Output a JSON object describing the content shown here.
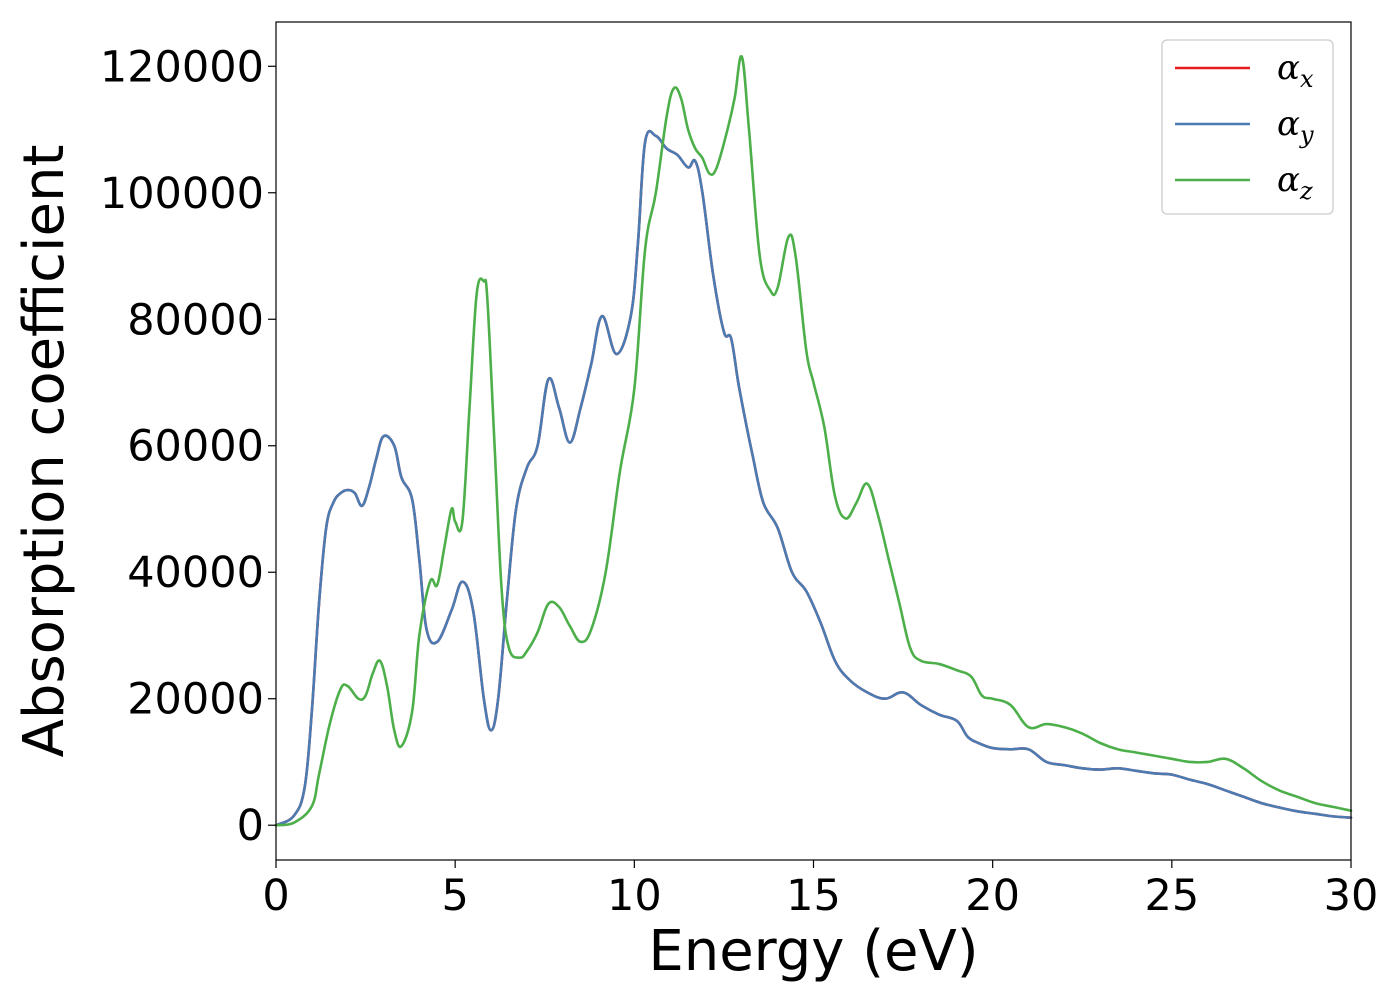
{
  "chart_data": {
    "type": "line",
    "title": "",
    "xlabel": "Energy (eV)",
    "ylabel": "Absorption coefficient",
    "xlim": [
      0,
      30
    ],
    "ylim": [
      -5500,
      127000
    ],
    "xticks": [
      0,
      5,
      10,
      15,
      20,
      25,
      30
    ],
    "yticks": [
      0,
      20000,
      40000,
      60000,
      80000,
      100000,
      120000
    ],
    "xtick_labels": [
      "0",
      "5",
      "10",
      "15",
      "20",
      "25",
      "30"
    ],
    "ytick_labels": [
      "0",
      "20000",
      "40000",
      "60000",
      "80000",
      "100000",
      "120000"
    ],
    "grid": false,
    "legend_position": "top-right",
    "series": [
      {
        "name": "α_x",
        "legend_symbol": "α",
        "legend_subscript": "x",
        "color": "#e41a1c",
        "x": [
          0,
          0.5,
          0.8,
          1.0,
          1.2,
          1.4,
          1.6,
          1.8,
          2.0,
          2.2,
          2.4,
          2.6,
          2.8,
          3.0,
          3.3,
          3.5,
          3.8,
          4.0,
          4.2,
          4.5,
          4.9,
          5.2,
          5.5,
          5.8,
          6.0,
          6.2,
          6.45,
          6.7,
          7.0,
          7.3,
          7.6,
          7.9,
          8.2,
          8.5,
          8.8,
          9.1,
          9.5,
          9.9,
          10.1,
          10.3,
          10.6,
          10.9,
          11.2,
          11.5,
          11.7,
          11.9,
          12.2,
          12.5,
          12.7,
          12.9,
          13.1,
          13.3,
          13.6,
          14.0,
          14.4,
          14.8,
          15.2,
          15.6,
          16.0,
          16.5,
          17.0,
          17.5,
          18.0,
          18.5,
          19.0,
          19.3,
          19.6,
          20.0,
          20.5,
          21.0,
          21.5,
          22.0,
          22.5,
          23.0,
          23.5,
          24.0,
          24.5,
          25.0,
          25.5,
          26.0,
          26.5,
          27.0,
          27.5,
          28.0,
          28.5,
          29.0,
          29.5,
          30.0
        ],
        "y": [
          0,
          1500,
          6000,
          18000,
          35000,
          47000,
          51000,
          52500,
          53000,
          52500,
          50500,
          53500,
          58000,
          61500,
          60000,
          55000,
          51500,
          42000,
          31000,
          29000,
          34000,
          38500,
          34000,
          20000,
          15000,
          20000,
          36000,
          50000,
          56500,
          60000,
          70500,
          66000,
          60500,
          66000,
          73000,
          80500,
          74500,
          80500,
          92000,
          108000,
          109000,
          107000,
          106000,
          104000,
          105000,
          100000,
          87000,
          78000,
          77000,
          70000,
          64000,
          58500,
          51000,
          47000,
          40000,
          37000,
          32000,
          26000,
          23000,
          21000,
          20000,
          21000,
          19000,
          17500,
          16500,
          14000,
          13000,
          12200,
          12000,
          12000,
          10000,
          9500,
          9000,
          8800,
          9000,
          8600,
          8200,
          8000,
          7200,
          6500,
          5500,
          4500,
          3500,
          2800,
          2200,
          1800,
          1400,
          1200
        ]
      },
      {
        "name": "α_y",
        "legend_symbol": "α",
        "legend_subscript": "y",
        "color": "#4a7cb3",
        "x": [
          0,
          0.5,
          0.8,
          1.0,
          1.2,
          1.4,
          1.6,
          1.8,
          2.0,
          2.2,
          2.4,
          2.6,
          2.8,
          3.0,
          3.3,
          3.5,
          3.8,
          4.0,
          4.2,
          4.5,
          4.9,
          5.2,
          5.5,
          5.8,
          6.0,
          6.2,
          6.45,
          6.7,
          7.0,
          7.3,
          7.6,
          7.9,
          8.2,
          8.5,
          8.8,
          9.1,
          9.5,
          9.9,
          10.1,
          10.3,
          10.6,
          10.9,
          11.2,
          11.5,
          11.7,
          11.9,
          12.2,
          12.5,
          12.7,
          12.9,
          13.1,
          13.3,
          13.6,
          14.0,
          14.4,
          14.8,
          15.2,
          15.6,
          16.0,
          16.5,
          17.0,
          17.5,
          18.0,
          18.5,
          19.0,
          19.3,
          19.6,
          20.0,
          20.5,
          21.0,
          21.5,
          22.0,
          22.5,
          23.0,
          23.5,
          24.0,
          24.5,
          25.0,
          25.5,
          26.0,
          26.5,
          27.0,
          27.5,
          28.0,
          28.5,
          29.0,
          29.5,
          30.0
        ],
        "y": [
          0,
          1500,
          6000,
          18000,
          35000,
          47000,
          51000,
          52500,
          53000,
          52500,
          50500,
          53500,
          58000,
          61500,
          60000,
          55000,
          51500,
          42000,
          31000,
          29000,
          34000,
          38500,
          34000,
          20000,
          15000,
          20000,
          36000,
          50000,
          56500,
          60000,
          70500,
          66000,
          60500,
          66000,
          73000,
          80500,
          74500,
          80500,
          92000,
          108000,
          109000,
          107000,
          106000,
          104000,
          105000,
          100000,
          87000,
          78000,
          77000,
          70000,
          64000,
          58500,
          51000,
          47000,
          40000,
          37000,
          32000,
          26000,
          23000,
          21000,
          20000,
          21000,
          19000,
          17500,
          16500,
          14000,
          13000,
          12200,
          12000,
          12000,
          10000,
          9500,
          9000,
          8800,
          9000,
          8600,
          8200,
          8000,
          7200,
          6500,
          5500,
          4500,
          3500,
          2800,
          2200,
          1800,
          1400,
          1200
        ]
      },
      {
        "name": "α_z",
        "legend_symbol": "α",
        "legend_subscript": "z",
        "color": "#4daf4a",
        "x": [
          0,
          0.5,
          1.0,
          1.2,
          1.5,
          1.8,
          2.0,
          2.3,
          2.5,
          2.7,
          2.9,
          3.1,
          3.3,
          3.5,
          3.8,
          4.0,
          4.3,
          4.5,
          4.7,
          4.9,
          5.0,
          5.2,
          5.4,
          5.6,
          5.8,
          5.9,
          6.1,
          6.3,
          6.5,
          6.8,
          7.0,
          7.3,
          7.6,
          7.9,
          8.2,
          8.5,
          8.8,
          9.2,
          9.6,
          10.0,
          10.3,
          10.6,
          10.9,
          11.1,
          11.3,
          11.5,
          11.7,
          11.9,
          12.1,
          12.3,
          12.6,
          12.8,
          13.0,
          13.2,
          13.5,
          13.8,
          14.0,
          14.3,
          14.5,
          14.8,
          15.0,
          15.3,
          15.6,
          15.9,
          16.2,
          16.5,
          16.8,
          17.1,
          17.4,
          17.7,
          18.0,
          18.5,
          19.0,
          19.4,
          19.7,
          20.0,
          20.5,
          21.0,
          21.5,
          22.0,
          22.5,
          23.0,
          23.5,
          24.0,
          24.5,
          25.0,
          25.5,
          26.0,
          26.5,
          27.0,
          27.5,
          28.0,
          28.5,
          29.0,
          29.5,
          30.0
        ],
        "y": [
          0,
          400,
          3000,
          8000,
          16000,
          21500,
          22000,
          20000,
          20500,
          24000,
          26000,
          22000,
          15000,
          12500,
          18000,
          30000,
          38500,
          38000,
          44000,
          50000,
          48000,
          48000,
          66000,
          84000,
          86000,
          83000,
          60000,
          37000,
          28000,
          26500,
          27500,
          30500,
          35000,
          34500,
          31500,
          29000,
          31000,
          40000,
          56000,
          69000,
          91000,
          100000,
          112000,
          116500,
          115000,
          110000,
          107000,
          105500,
          103000,
          104000,
          110000,
          115000,
          121500,
          110000,
          90000,
          84500,
          85000,
          93000,
          90000,
          75000,
          70000,
          63000,
          52000,
          48500,
          51000,
          54000,
          49000,
          42000,
          35000,
          28000,
          26000,
          25500,
          24500,
          23500,
          20500,
          20000,
          19000,
          15500,
          16000,
          15500,
          14500,
          13000,
          12000,
          11500,
          11000,
          10500,
          10000,
          10000,
          10500,
          9000,
          7000,
          5500,
          4500,
          3500,
          2900,
          2300
        ]
      }
    ]
  }
}
